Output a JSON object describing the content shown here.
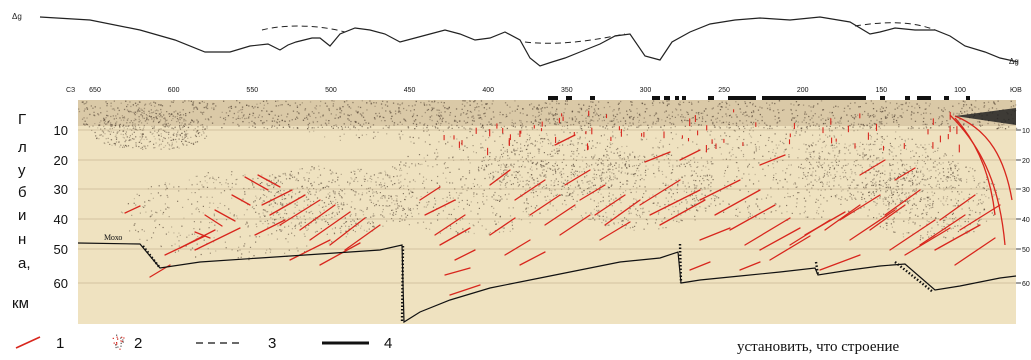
{
  "figure": {
    "gravity_label_left": "Δg",
    "gravity_label_right": "Δg",
    "sw_label": "СЗ",
    "se_label": "ЮВ",
    "distance_ticks": [
      {
        "v": 650,
        "label": "650"
      },
      {
        "v": 600,
        "label": "600"
      },
      {
        "v": 550,
        "label": "550"
      },
      {
        "v": 500,
        "label": "500"
      },
      {
        "v": 450,
        "label": "450"
      },
      {
        "v": 400,
        "label": "400"
      },
      {
        "v": 350,
        "label": "350"
      },
      {
        "v": 300,
        "label": "300"
      },
      {
        "v": 250,
        "label": "250"
      },
      {
        "v": 200,
        "label": "200"
      },
      {
        "v": 150,
        "label": "150"
      },
      {
        "v": 100,
        "label": "100"
      }
    ],
    "depth_ticks_left": [
      "10",
      "20",
      "30",
      "40",
      "50",
      "60"
    ],
    "depth_ticks_right": [
      "10",
      "20",
      "30",
      "40",
      "50",
      "60"
    ],
    "vertical_axis_letters": [
      "Г",
      "л",
      "у",
      "б",
      "и",
      "н",
      "а,",
      "км"
    ],
    "moho_label": "Мохо",
    "legend": [
      {
        "num": "1",
        "kind": "red-line"
      },
      {
        "num": "2",
        "kind": "dots"
      },
      {
        "num": "3",
        "kind": "dashed"
      },
      {
        "num": "4",
        "kind": "thick"
      }
    ],
    "colors": {
      "background": "#efe2c0",
      "reflector": "#d8261d",
      "noise": "#5a4a3a",
      "moho": "#111111"
    }
  },
  "caption_fragment": "установить, что строение"
}
